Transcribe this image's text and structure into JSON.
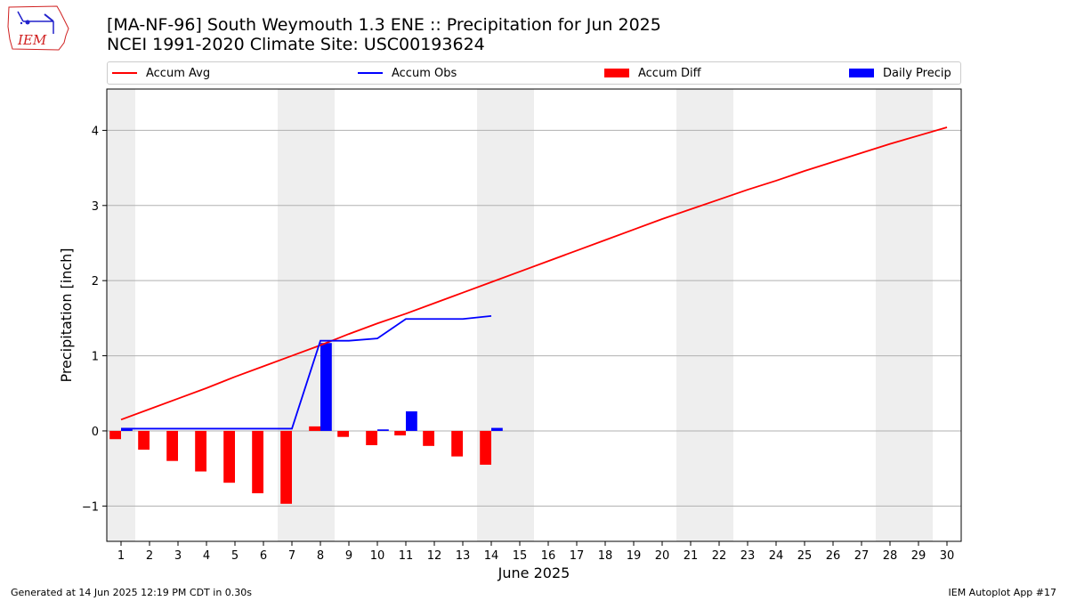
{
  "title_line1": "[MA-NF-96] South Weymouth 1.3 ENE :: Precipitation for Jun 2025",
  "title_line2": "NCEI 1991-2020 Climate Site: USC00193624",
  "logo_text": "IEM",
  "footer_left": "Generated at 14 Jun 2025 12:19 PM CDT in 0.30s",
  "footer_right": "IEM Autoplot App #17",
  "colors": {
    "avg": "#ff0000",
    "obs": "#0000ff",
    "diff": "#ff0000",
    "daily": "#0000ff",
    "weekend_shade": "#eeeeee",
    "grid": "#b0b0b0"
  },
  "chart_data": {
    "type": "bar",
    "xlabel": "June 2025",
    "ylabel": "Precipitation [inch]",
    "xlim": [
      0.5,
      30.5
    ],
    "ylim": [
      -1.47,
      4.55
    ],
    "yticks": [
      -1,
      0,
      1,
      2,
      3,
      4
    ],
    "ytick_labels": [
      "−1",
      "0",
      "1",
      "2",
      "3",
      "4"
    ],
    "x": [
      1,
      2,
      3,
      4,
      5,
      6,
      7,
      8,
      9,
      10,
      11,
      12,
      13,
      14,
      15,
      16,
      17,
      18,
      19,
      20,
      21,
      22,
      23,
      24,
      25,
      26,
      27,
      28,
      29,
      30
    ],
    "xtick_labels": [
      "1",
      "2",
      "3",
      "4",
      "5",
      "6",
      "7",
      "8",
      "9",
      "10",
      "11",
      "12",
      "13",
      "14",
      "15",
      "16",
      "17",
      "18",
      "19",
      "20",
      "21",
      "22",
      "23",
      "24",
      "25",
      "26",
      "27",
      "28",
      "29",
      "30"
    ],
    "shaded_spans": [
      [
        0.5,
        1.5
      ],
      [
        6.5,
        8.5
      ],
      [
        13.5,
        15.5
      ],
      [
        20.5,
        22.5
      ],
      [
        27.5,
        29.5
      ]
    ],
    "grid": "y",
    "legend_position": "top",
    "series": [
      {
        "name": "Accum Avg",
        "kind": "line",
        "x": [
          1,
          2,
          3,
          4,
          5,
          6,
          7,
          8,
          9,
          10,
          11,
          12,
          13,
          14,
          15,
          16,
          17,
          18,
          19,
          20,
          21,
          22,
          23,
          24,
          25,
          26,
          27,
          28,
          29,
          30
        ],
        "values": [
          0.15,
          0.29,
          0.43,
          0.57,
          0.72,
          0.86,
          1.0,
          1.14,
          1.29,
          1.43,
          1.56,
          1.7,
          1.84,
          1.98,
          2.12,
          2.26,
          2.4,
          2.54,
          2.68,
          2.82,
          2.95,
          3.08,
          3.21,
          3.33,
          3.46,
          3.58,
          3.7,
          3.82,
          3.93,
          4.04
        ]
      },
      {
        "name": "Accum Obs",
        "kind": "line",
        "x": [
          1,
          2,
          3,
          4,
          5,
          6,
          7,
          8,
          9,
          10,
          11,
          12,
          13,
          14
        ],
        "values": [
          0.03,
          0.03,
          0.03,
          0.03,
          0.03,
          0.03,
          0.03,
          1.2,
          1.2,
          1.23,
          1.49,
          1.49,
          1.49,
          1.53
        ]
      },
      {
        "name": "Accum Diff",
        "kind": "bar",
        "x": [
          1,
          2,
          3,
          4,
          5,
          6,
          7,
          8,
          9,
          10,
          11,
          12,
          13,
          14
        ],
        "values": [
          -0.11,
          -0.25,
          -0.4,
          -0.54,
          -0.69,
          -0.83,
          -0.97,
          0.06,
          -0.08,
          -0.19,
          -0.06,
          -0.2,
          -0.34,
          -0.45
        ]
      },
      {
        "name": "Daily Precip",
        "kind": "bar",
        "x": [
          1,
          2,
          3,
          4,
          5,
          6,
          7,
          8,
          9,
          10,
          11,
          12,
          13,
          14
        ],
        "values": [
          0.03,
          0,
          0,
          0,
          0,
          0,
          0,
          1.17,
          0,
          0.02,
          0.26,
          0,
          0,
          0.04
        ]
      }
    ]
  }
}
